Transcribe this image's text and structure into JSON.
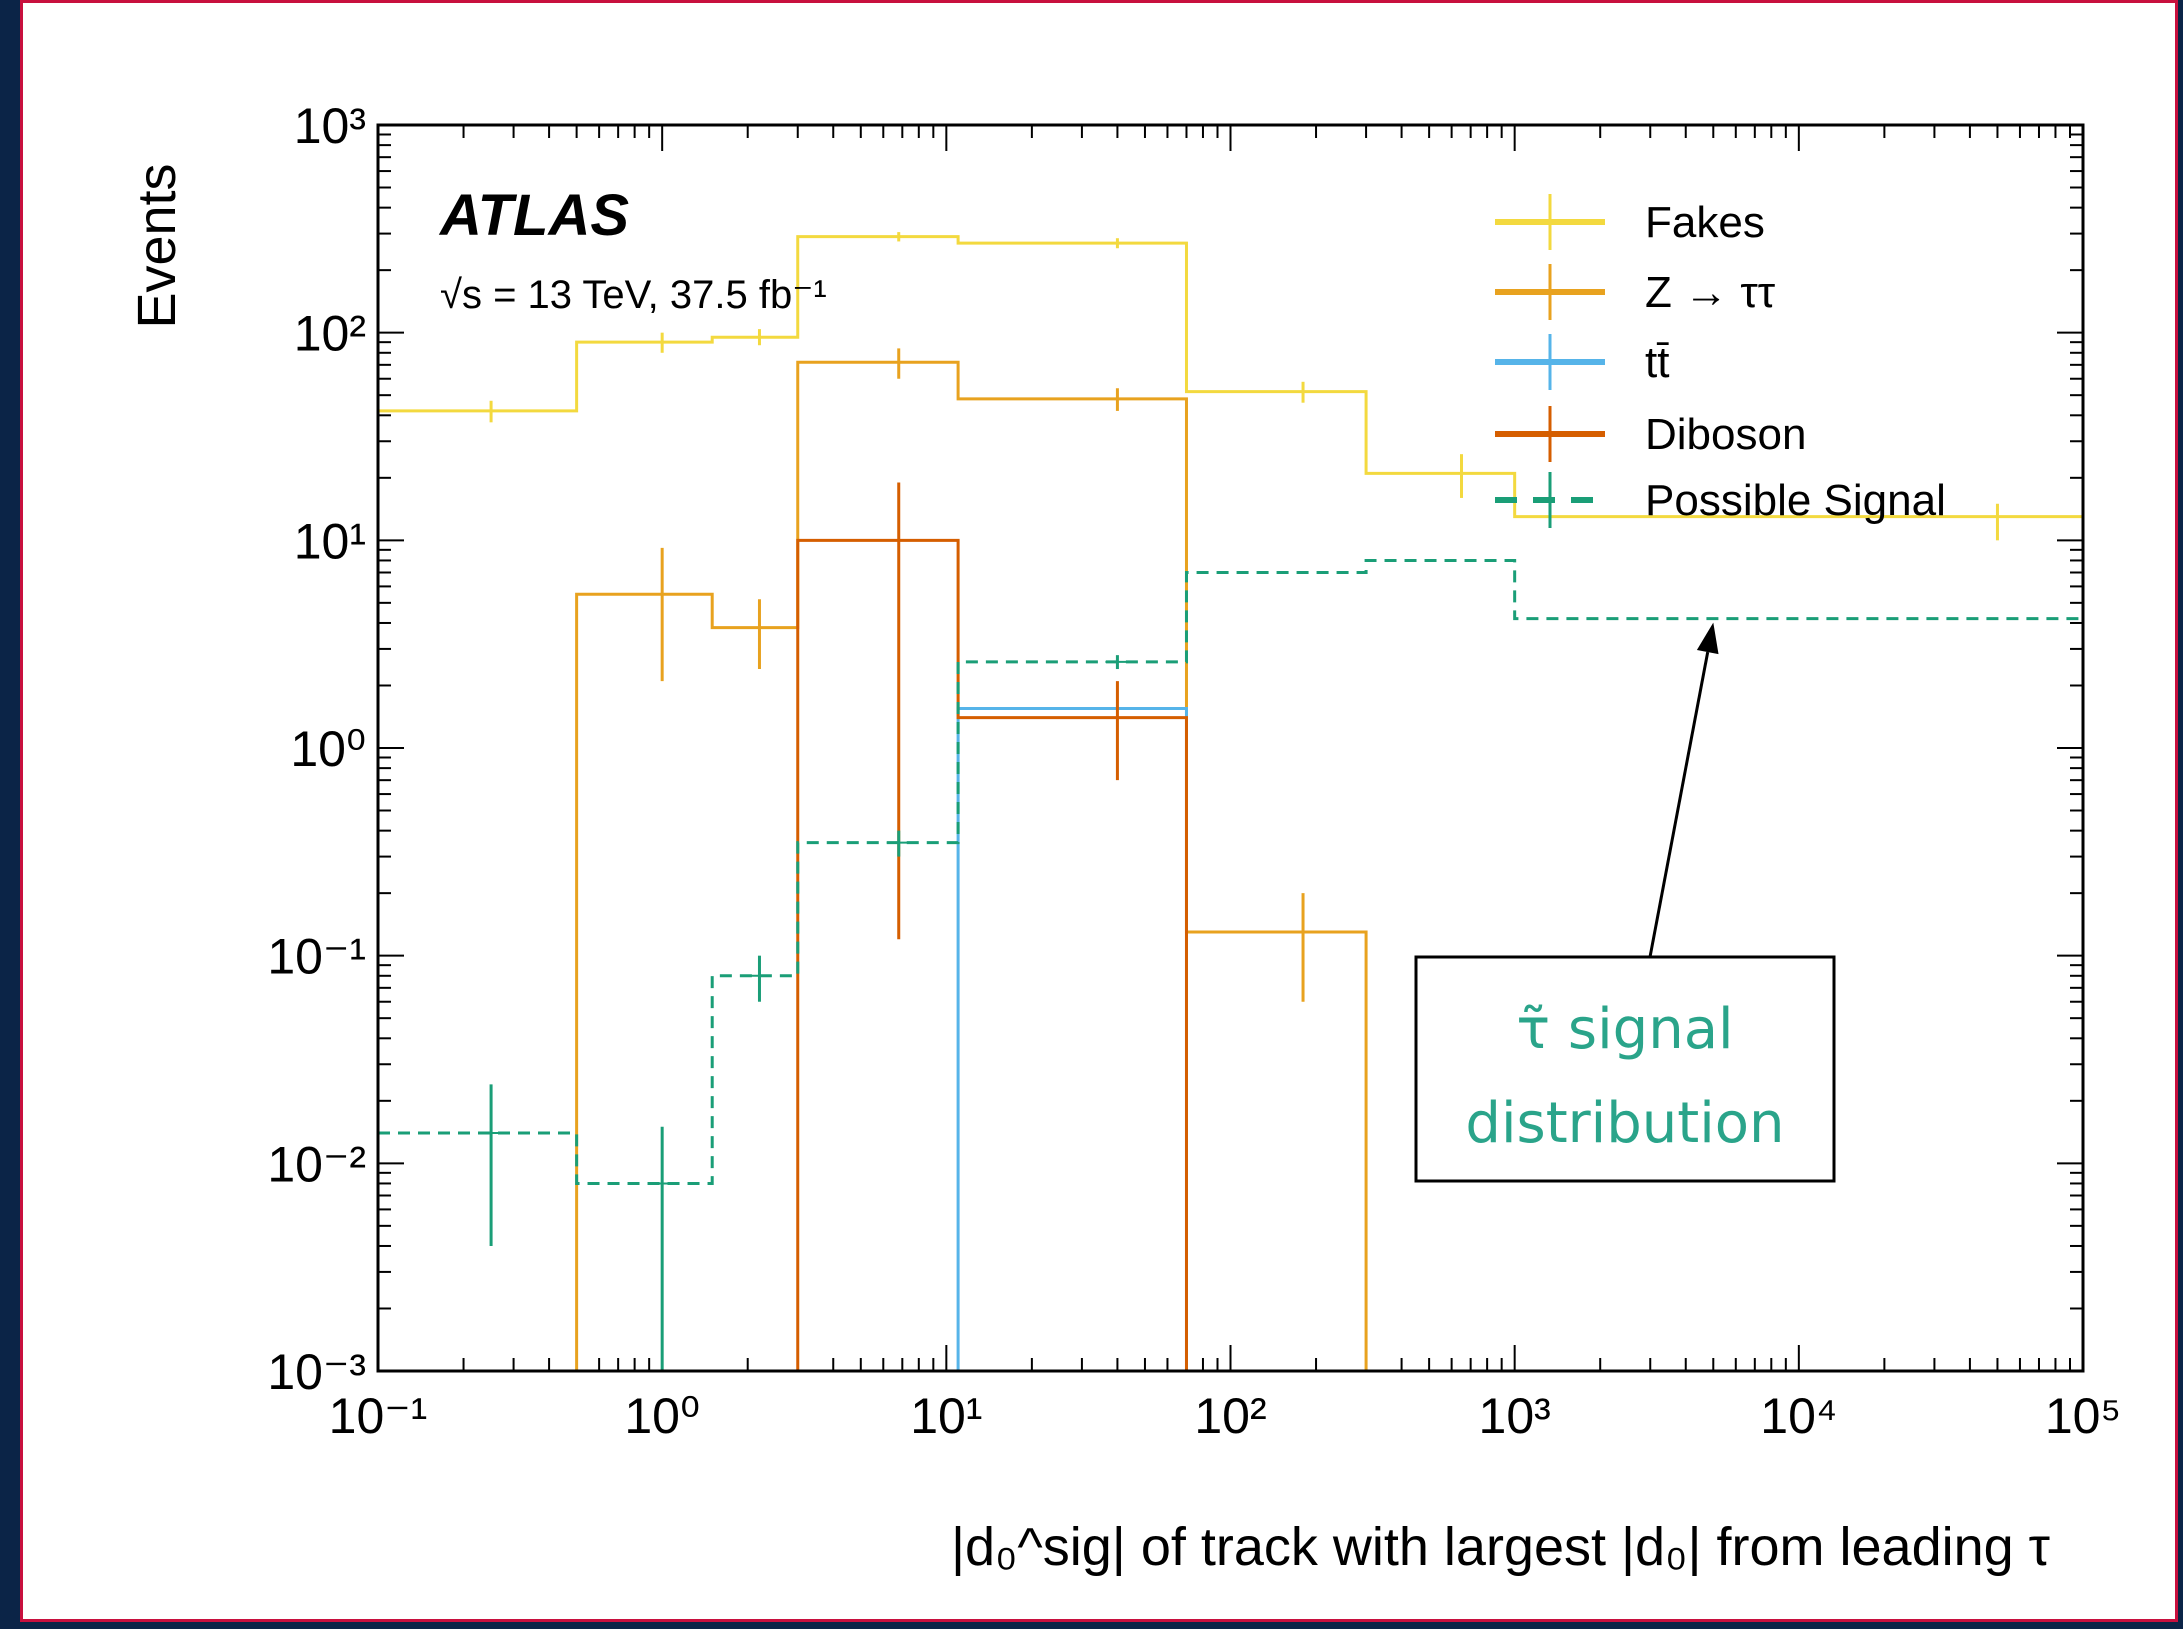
{
  "chart_data": {
    "type": "line",
    "drawstyle": "step-histogram",
    "xscale": "log",
    "yscale": "log",
    "xlim": [
      0.1,
      100000
    ],
    "ylim": [
      0.001,
      1000
    ],
    "xlabel": "|d₀^sig| of track with largest |d₀| from leading τ",
    "ylabel": "Events",
    "x_ticks": [
      "10⁻¹",
      "10⁰",
      "10¹",
      "10²",
      "10³",
      "10⁴",
      "10⁵"
    ],
    "y_ticks": [
      "10⁻³",
      "10⁻²",
      "10⁻¹",
      "10⁰",
      "10¹",
      "10²",
      "10³"
    ],
    "experiment_label": "ATLAS",
    "energy_label": "√s = 13 TeV, 37.5 fb⁻¹",
    "legend_position": "top-right",
    "bin_edges": [
      0.1,
      0.5,
      1.5,
      3,
      11,
      70,
      300,
      1000,
      100000
    ],
    "series": [
      {
        "name": "Fakes",
        "color": "#f3d93f",
        "line": "solid",
        "values": [
          42,
          90,
          95,
          290,
          270,
          52,
          21,
          13
        ],
        "errors": [
          [
            37,
            47
          ],
          [
            80,
            100
          ],
          [
            87,
            104
          ],
          [
            275,
            305
          ],
          [
            255,
            285
          ],
          [
            46,
            58
          ],
          [
            16,
            26
          ],
          [
            10,
            15
          ]
        ],
        "markers_x": [
          0.25,
          1.0,
          2.2,
          6.8,
          40,
          180,
          650,
          50000
        ]
      },
      {
        "name": "Z → ττ",
        "color": "#e8a21f",
        "line": "solid",
        "values": [
          0,
          5.5,
          3.8,
          72,
          48,
          0.13,
          0,
          0
        ],
        "errors": [
          null,
          [
            2.1,
            9.2
          ],
          [
            2.4,
            5.2
          ],
          [
            60,
            84
          ],
          [
            42,
            54
          ],
          [
            0.06,
            0.2
          ],
          null,
          null
        ],
        "markers_x": [
          null,
          1.0,
          2.2,
          6.8,
          40,
          180,
          null,
          null
        ]
      },
      {
        "name": "tt̄",
        "color": "#56b4e9",
        "line": "solid",
        "values": [
          0,
          0,
          0,
          0,
          1.55,
          0,
          0,
          0
        ],
        "errors": [
          null,
          null,
          null,
          null,
          null,
          null,
          null,
          null
        ],
        "markers_x": [
          null,
          null,
          null,
          null,
          null,
          null,
          null,
          null
        ]
      },
      {
        "name": "Diboson",
        "color": "#d55e00",
        "line": "solid",
        "values": [
          0,
          0,
          0,
          10,
          1.4,
          0,
          0,
          0
        ],
        "errors": [
          null,
          null,
          null,
          [
            0.12,
            19
          ],
          [
            0.7,
            2.1
          ],
          null,
          null,
          null
        ],
        "markers_x": [
          null,
          null,
          null,
          6.8,
          40,
          null,
          null,
          null
        ]
      },
      {
        "name": "Possible Signal",
        "color": "#1a9e77",
        "line": "dashed",
        "values": [
          0.014,
          0.008,
          0.08,
          0.35,
          2.6,
          7,
          8,
          4.2
        ],
        "errors": [
          [
            0.004,
            0.024
          ],
          [
            0.001,
            0.015
          ],
          [
            0.06,
            0.1
          ],
          [
            0.3,
            0.4
          ],
          [
            2.4,
            2.8
          ],
          null,
          null,
          null
        ],
        "markers_x": [
          0.25,
          1.0,
          2.2,
          6.8,
          40,
          null,
          null,
          null
        ]
      }
    ],
    "annotation": {
      "text_line1": "τ̃ signal",
      "text_line2": "distribution",
      "arrow_target": [
        5000,
        4.2
      ]
    }
  }
}
